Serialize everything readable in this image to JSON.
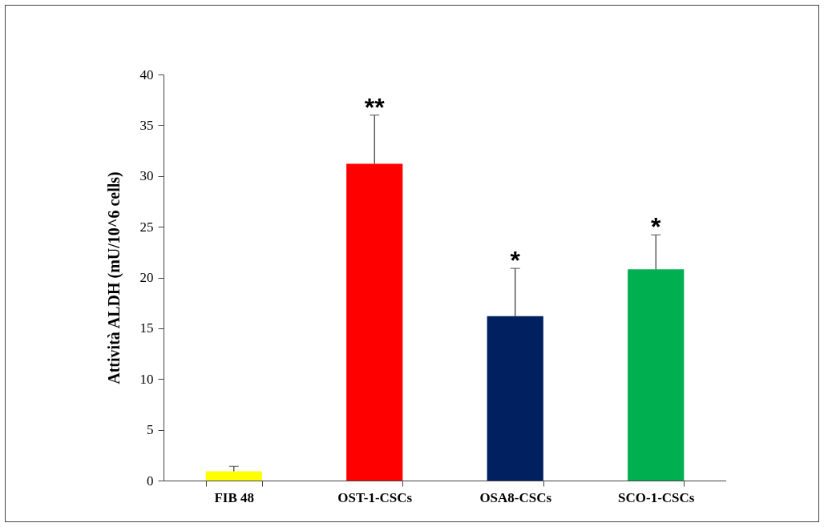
{
  "chart_data": {
    "type": "bar",
    "ylabel": "Attività ALDH (mU/10^6 cells)",
    "categories": [
      "FIB 48",
      "OST-1-CSCs",
      "OSA8-CSCs",
      "SCO-1-CSCs"
    ],
    "values": [
      0.9,
      31.2,
      16.2,
      20.8
    ],
    "colors": [
      "#ffff00",
      "#ff0000",
      "#002060",
      "#00b050"
    ],
    "errors": [
      0.5,
      4.8,
      4.7,
      3.4
    ],
    "ylim": [
      0,
      40
    ],
    "yticks": [
      0,
      5,
      10,
      15,
      20,
      25,
      30,
      35,
      40
    ],
    "grid": false,
    "annotations": [
      "**",
      "*",
      "*"
    ]
  }
}
